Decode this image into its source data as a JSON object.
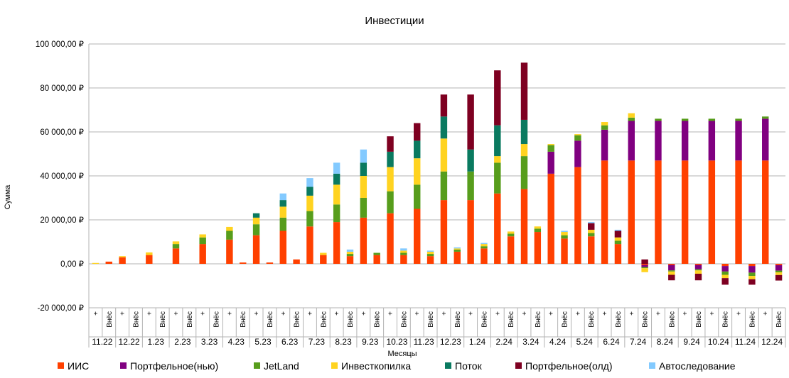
{
  "chart_data": {
    "type": "bar",
    "stacked": true,
    "title": "Инвестиции",
    "xlabel": "Месяцы",
    "ylabel": "Сумма",
    "ylim": [
      -20000,
      100000
    ],
    "yticks": [
      -20000,
      0,
      20000,
      40000,
      60000,
      80000,
      100000
    ],
    "ytick_labels": [
      "-20 000,00 ₽",
      "0,00 ₽",
      "20 000,00 ₽",
      "40 000,00 ₽",
      "60 000,00 ₽",
      "80 000,00 ₽",
      "100 000,00 ₽"
    ],
    "legend_position": "bottom",
    "months": [
      "11.22",
      "12.22",
      "1.23",
      "2.23",
      "3.23",
      "4.23",
      "5.23",
      "6.23",
      "7.23",
      "8.23",
      "9.23",
      "10.23",
      "11.23",
      "12.23",
      "1.24",
      "2.24",
      "3.24",
      "4.24",
      "5.24",
      "6.24",
      "7.24",
      "8.24",
      "9.24",
      "10.24",
      "11.24",
      "12.24"
    ],
    "sub_labels": [
      "+",
      "Внёс"
    ],
    "categories": [
      "11.22 +",
      "11.22 Внёс",
      "12.22 +",
      "12.22 Внёс",
      "1.23 +",
      "1.23 Внёс",
      "2.23 +",
      "2.23 Внёс",
      "3.23 +",
      "3.23 Внёс",
      "4.23 +",
      "4.23 Внёс",
      "5.23 +",
      "5.23 Внёс",
      "6.23 +",
      "6.23 Внёс",
      "7.23 +",
      "7.23 Внёс",
      "8.23 +",
      "8.23 Внёс",
      "9.23 +",
      "9.23 Внёс",
      "10.23 +",
      "10.23 Внёс",
      "11.23 +",
      "11.23 Внёс",
      "12.23 +",
      "12.23 Внёс",
      "1.24 +",
      "1.24 Внёс",
      "2.24 +",
      "2.24 Внёс",
      "3.24 +",
      "3.24 Внёс",
      "4.24 +",
      "4.24 Внёс",
      "5.24 +",
      "5.24 Внёс",
      "6.24 +",
      "6.24 Внёс",
      "7.24 +",
      "7.24 Внёс",
      "8.24 +",
      "8.24 Внёс",
      "9.24 +",
      "9.24 Внёс",
      "10.24 +",
      "10.24 Внёс",
      "11.24 +",
      "11.24 Внёс",
      "12.24 +",
      "12.24 Внёс"
    ],
    "series": [
      {
        "name": "ИИС",
        "color": "#ff4000",
        "values": [
          0,
          1000,
          3000,
          0,
          4000,
          0,
          7000,
          0,
          9000,
          0,
          11000,
          600,
          13000,
          600,
          15000,
          2000,
          17000,
          4000,
          19000,
          3500,
          21000,
          4000,
          23000,
          4000,
          25000,
          3500,
          29000,
          5500,
          29000,
          7000,
          32000,
          12500,
          34000,
          14500,
          41000,
          11500,
          44000,
          12500,
          47000,
          9000,
          47000,
          -500,
          47000,
          -500,
          47000,
          -500,
          47000,
          -1000,
          47000,
          -1000,
          47000,
          -600
        ]
      },
      {
        "name": "Портфельное(нью)",
        "color": "#800080",
        "values": [
          0,
          0,
          0,
          0,
          0,
          0,
          0,
          0,
          0,
          0,
          0,
          0,
          0,
          0,
          0,
          0,
          0,
          0,
          0,
          0,
          0,
          0,
          0,
          0,
          0,
          0,
          0,
          0,
          0,
          0,
          0,
          0,
          0,
          0,
          10000,
          0,
          12000,
          0,
          14000,
          0,
          18000,
          -1000,
          18000,
          -2500,
          18000,
          -2000,
          18000,
          -2500,
          18000,
          -3000,
          19000,
          -2500
        ]
      },
      {
        "name": "JetLand",
        "color": "#579d1c",
        "values": [
          0,
          0,
          0,
          0,
          0,
          0,
          2000,
          0,
          3000,
          0,
          4000,
          0,
          5000,
          0,
          6000,
          0,
          7000,
          0,
          8000,
          1000,
          9000,
          1000,
          10000,
          1000,
          11000,
          1000,
          13000,
          1000,
          13000,
          1000,
          14000,
          1200,
          15000,
          1500,
          3000,
          1500,
          2500,
          1500,
          2000,
          1500,
          1500,
          -500,
          1000,
          -500,
          1000,
          -500,
          1000,
          -1500,
          1000,
          -1500,
          1000,
          -800
        ]
      },
      {
        "name": "Инвесткопилка",
        "color": "#ffd320",
        "values": [
          400,
          0,
          500,
          0,
          1200,
          0,
          1200,
          0,
          1400,
          0,
          1800,
          0,
          3000,
          0,
          5000,
          0,
          7000,
          1000,
          9000,
          1000,
          10000,
          0,
          11000,
          1000,
          12000,
          1000,
          15000,
          500,
          0,
          1000,
          3000,
          1000,
          5500,
          1000,
          500,
          1500,
          500,
          1500,
          1500,
          1500,
          2000,
          -1800,
          0,
          -1500,
          0,
          -1500,
          0,
          -1500,
          0,
          -1500,
          0,
          -1200
        ]
      },
      {
        "name": "Поток",
        "color": "#0a7a60",
        "values": [
          0,
          0,
          0,
          0,
          0,
          0,
          0,
          0,
          0,
          0,
          0,
          0,
          2000,
          0,
          3000,
          0,
          4000,
          0,
          5000,
          0,
          6000,
          0,
          7000,
          0,
          8000,
          0,
          10000,
          0,
          10000,
          0,
          14000,
          0,
          11000,
          0,
          0,
          0,
          0,
          0,
          0,
          0,
          0,
          0,
          0,
          0,
          0,
          0,
          0,
          0,
          0,
          0,
          0,
          0
        ]
      },
      {
        "name": "Портфельное(олд)",
        "color": "#7e0021",
        "values": [
          0,
          0,
          0,
          0,
          0,
          0,
          0,
          0,
          0,
          0,
          0,
          0,
          0,
          0,
          0,
          0,
          0,
          0,
          0,
          0,
          0,
          0,
          7000,
          0,
          8000,
          0,
          10000,
          0,
          25000,
          0,
          25000,
          0,
          26000,
          0,
          0,
          0,
          0,
          3000,
          0,
          3000,
          0,
          2000,
          0,
          -2500,
          0,
          -3000,
          0,
          -3000,
          0,
          -2500,
          0,
          -2500
        ]
      },
      {
        "name": "Автоследование",
        "color": "#83caff",
        "values": [
          0,
          0,
          0,
          0,
          0,
          0,
          0,
          0,
          0,
          0,
          0,
          0,
          0,
          0,
          3000,
          0,
          4000,
          0,
          5000,
          1000,
          6000,
          0,
          0,
          1000,
          0,
          500,
          0,
          500,
          0,
          500,
          0,
          0,
          0,
          0,
          0,
          500,
          0,
          500,
          0,
          500,
          0,
          0,
          0,
          0,
          0,
          0,
          0,
          0,
          0,
          0,
          0,
          0
        ]
      }
    ]
  }
}
